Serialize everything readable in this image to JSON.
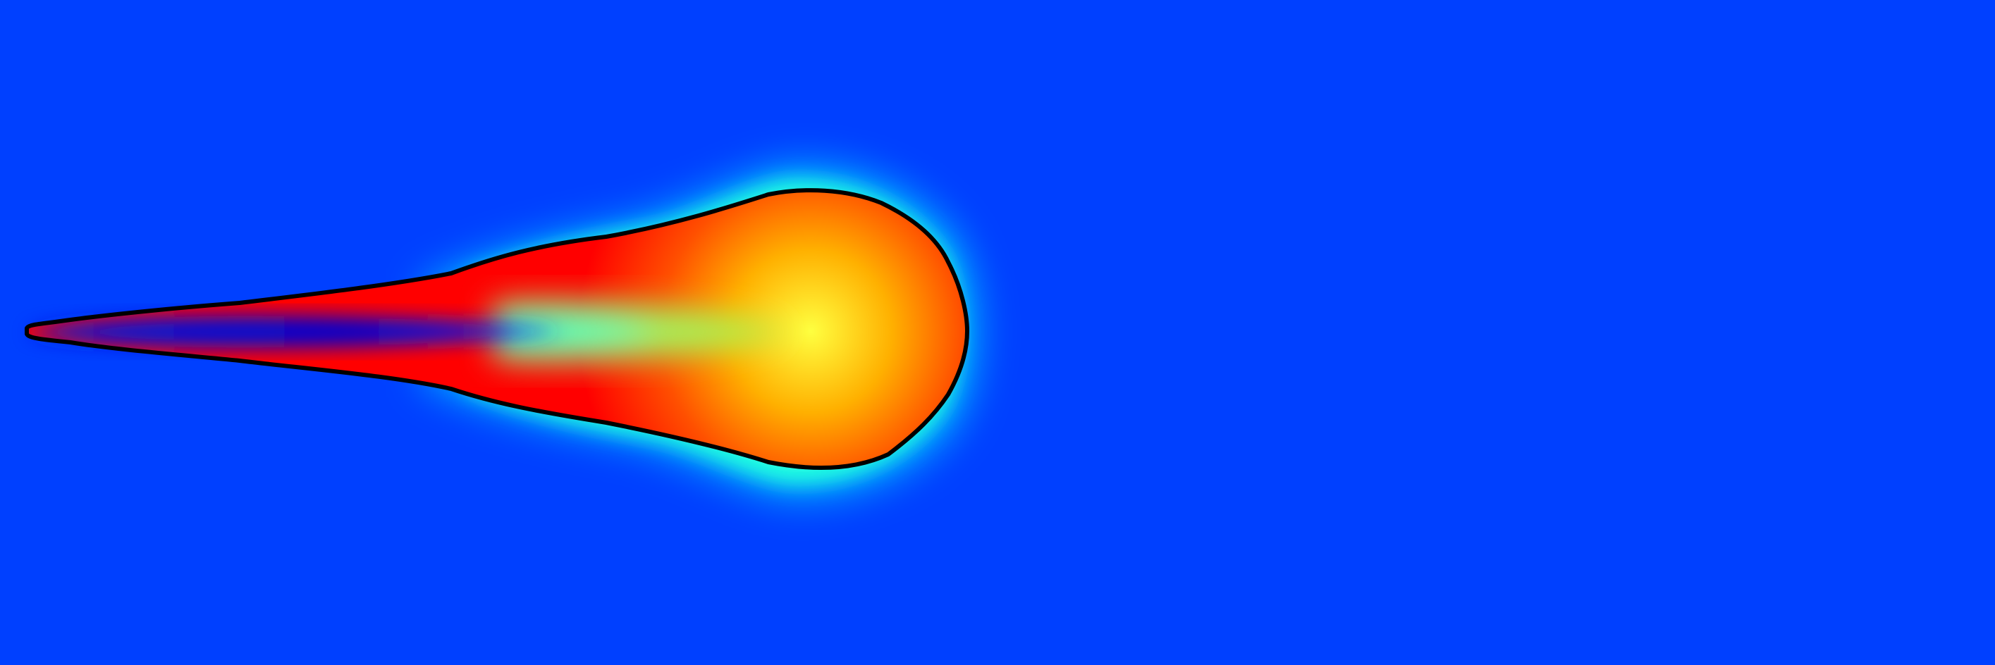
{
  "figure": {
    "background_color": "#0040ff",
    "colormap": [
      "#00008f",
      "#0000ff",
      "#0040ff",
      "#00bfff",
      "#00ffff",
      "#80ff80",
      "#ffff00",
      "#ff8000",
      "#ff0000"
    ],
    "contour_color": "#000000"
  }
}
